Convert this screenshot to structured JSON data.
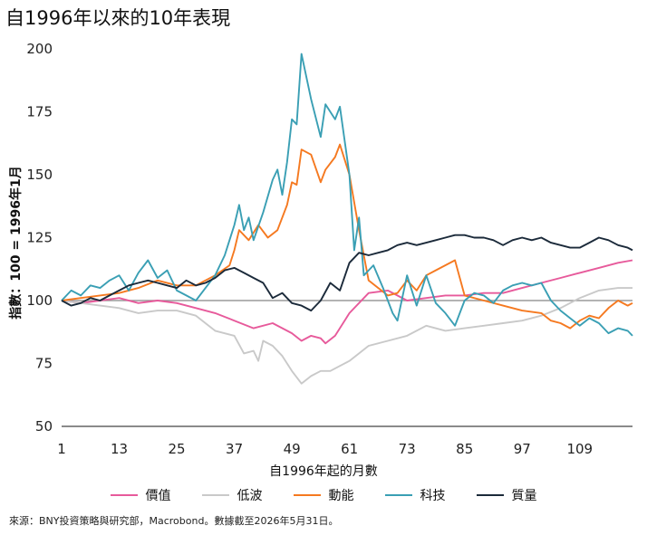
{
  "title": "自1996年以來的10年表現",
  "source": "來源：BNY投資策略與研究部，Macrobond。數據截至2026年5月31日。",
  "chart_data": {
    "type": "line",
    "title": "自1996年以來的10年表現",
    "xlabel": "自1996年起的月數",
    "ylabel": "指數：100 = 1996年1月",
    "xlim": [
      1,
      120
    ],
    "ylim": [
      50,
      200
    ],
    "x_ticks": [
      1,
      13,
      25,
      37,
      49,
      61,
      73,
      85,
      97,
      109
    ],
    "y_ticks": [
      50,
      75,
      100,
      125,
      150,
      175,
      200
    ],
    "grid": false,
    "reference_line": 100,
    "legend_position": "bottom",
    "series": [
      {
        "name": "價值",
        "color": "#e75a9b",
        "points": [
          [
            1,
            100
          ],
          [
            5,
            99
          ],
          [
            9,
            100
          ],
          [
            13,
            101
          ],
          [
            17,
            99
          ],
          [
            21,
            100
          ],
          [
            25,
            99
          ],
          [
            29,
            97
          ],
          [
            33,
            95
          ],
          [
            37,
            92
          ],
          [
            41,
            89
          ],
          [
            45,
            91
          ],
          [
            49,
            87
          ],
          [
            51,
            84
          ],
          [
            53,
            86
          ],
          [
            55,
            85
          ],
          [
            56,
            83
          ],
          [
            58,
            86
          ],
          [
            61,
            95
          ],
          [
            65,
            103
          ],
          [
            69,
            104
          ],
          [
            73,
            100
          ],
          [
            77,
            101
          ],
          [
            81,
            102
          ],
          [
            85,
            102
          ],
          [
            89,
            103
          ],
          [
            93,
            103
          ],
          [
            97,
            105
          ],
          [
            101,
            107
          ],
          [
            105,
            109
          ],
          [
            109,
            111
          ],
          [
            113,
            113
          ],
          [
            117,
            115
          ],
          [
            120,
            116
          ]
        ]
      },
      {
        "name": "低波",
        "color": "#c9c9c9",
        "points": [
          [
            1,
            100
          ],
          [
            5,
            99
          ],
          [
            9,
            98
          ],
          [
            13,
            97
          ],
          [
            17,
            95
          ],
          [
            21,
            96
          ],
          [
            25,
            96
          ],
          [
            29,
            94
          ],
          [
            33,
            88
          ],
          [
            37,
            86
          ],
          [
            39,
            79
          ],
          [
            41,
            80
          ],
          [
            42,
            76
          ],
          [
            43,
            84
          ],
          [
            45,
            82
          ],
          [
            47,
            78
          ],
          [
            49,
            72
          ],
          [
            51,
            67
          ],
          [
            53,
            70
          ],
          [
            55,
            72
          ],
          [
            57,
            72
          ],
          [
            61,
            76
          ],
          [
            65,
            82
          ],
          [
            69,
            84
          ],
          [
            73,
            86
          ],
          [
            77,
            90
          ],
          [
            81,
            88
          ],
          [
            85,
            89
          ],
          [
            89,
            90
          ],
          [
            93,
            91
          ],
          [
            97,
            92
          ],
          [
            101,
            94
          ],
          [
            105,
            97
          ],
          [
            109,
            101
          ],
          [
            113,
            104
          ],
          [
            117,
            105
          ],
          [
            120,
            105
          ]
        ]
      },
      {
        "name": "動能",
        "color": "#f57920",
        "points": [
          [
            1,
            100
          ],
          [
            5,
            101
          ],
          [
            9,
            102
          ],
          [
            13,
            103
          ],
          [
            17,
            105
          ],
          [
            21,
            108
          ],
          [
            25,
            106
          ],
          [
            29,
            106
          ],
          [
            33,
            110
          ],
          [
            36,
            114
          ],
          [
            37,
            120
          ],
          [
            38,
            128
          ],
          [
            40,
            124
          ],
          [
            42,
            130
          ],
          [
            44,
            125
          ],
          [
            46,
            128
          ],
          [
            48,
            138
          ],
          [
            49,
            147
          ],
          [
            50,
            146
          ],
          [
            51,
            160
          ],
          [
            53,
            158
          ],
          [
            55,
            147
          ],
          [
            56,
            152
          ],
          [
            58,
            157
          ],
          [
            59,
            162
          ],
          [
            61,
            150
          ],
          [
            63,
            128
          ],
          [
            64,
            118
          ],
          [
            65,
            108
          ],
          [
            67,
            105
          ],
          [
            69,
            102
          ],
          [
            71,
            103
          ],
          [
            73,
            108
          ],
          [
            75,
            104
          ],
          [
            77,
            110
          ],
          [
            79,
            112
          ],
          [
            83,
            116
          ],
          [
            85,
            102
          ],
          [
            89,
            100
          ],
          [
            93,
            98
          ],
          [
            97,
            96
          ],
          [
            101,
            95
          ],
          [
            103,
            92
          ],
          [
            105,
            91
          ],
          [
            107,
            89
          ],
          [
            109,
            92
          ],
          [
            111,
            94
          ],
          [
            113,
            93
          ],
          [
            115,
            97
          ],
          [
            117,
            100
          ],
          [
            119,
            98
          ],
          [
            120,
            99
          ]
        ]
      },
      {
        "name": "科技",
        "color": "#3a9fb4",
        "points": [
          [
            1,
            100
          ],
          [
            3,
            104
          ],
          [
            5,
            102
          ],
          [
            7,
            106
          ],
          [
            9,
            105
          ],
          [
            11,
            108
          ],
          [
            13,
            110
          ],
          [
            15,
            104
          ],
          [
            17,
            111
          ],
          [
            19,
            116
          ],
          [
            21,
            109
          ],
          [
            23,
            112
          ],
          [
            25,
            104
          ],
          [
            27,
            102
          ],
          [
            29,
            100
          ],
          [
            31,
            105
          ],
          [
            33,
            110
          ],
          [
            35,
            118
          ],
          [
            37,
            130
          ],
          [
            38,
            138
          ],
          [
            39,
            128
          ],
          [
            40,
            133
          ],
          [
            41,
            124
          ],
          [
            43,
            135
          ],
          [
            45,
            148
          ],
          [
            46,
            152
          ],
          [
            47,
            142
          ],
          [
            48,
            155
          ],
          [
            49,
            172
          ],
          [
            50,
            170
          ],
          [
            51,
            198
          ],
          [
            53,
            180
          ],
          [
            55,
            165
          ],
          [
            56,
            178
          ],
          [
            58,
            172
          ],
          [
            59,
            177
          ],
          [
            61,
            150
          ],
          [
            62,
            120
          ],
          [
            63,
            133
          ],
          [
            64,
            110
          ],
          [
            66,
            114
          ],
          [
            68,
            105
          ],
          [
            70,
            95
          ],
          [
            71,
            92
          ],
          [
            73,
            110
          ],
          [
            75,
            98
          ],
          [
            77,
            110
          ],
          [
            79,
            99
          ],
          [
            81,
            95
          ],
          [
            83,
            90
          ],
          [
            85,
            100
          ],
          [
            87,
            103
          ],
          [
            89,
            102
          ],
          [
            91,
            99
          ],
          [
            93,
            104
          ],
          [
            95,
            106
          ],
          [
            97,
            107
          ],
          [
            99,
            106
          ],
          [
            101,
            107
          ],
          [
            103,
            100
          ],
          [
            105,
            96
          ],
          [
            107,
            93
          ],
          [
            109,
            90
          ],
          [
            111,
            93
          ],
          [
            113,
            91
          ],
          [
            115,
            87
          ],
          [
            117,
            89
          ],
          [
            119,
            88
          ],
          [
            120,
            86
          ]
        ]
      },
      {
        "name": "質量",
        "color": "#1b2a3a",
        "points": [
          [
            1,
            100
          ],
          [
            3,
            98
          ],
          [
            5,
            99
          ],
          [
            7,
            101
          ],
          [
            9,
            100
          ],
          [
            11,
            102
          ],
          [
            13,
            104
          ],
          [
            15,
            106
          ],
          [
            17,
            107
          ],
          [
            19,
            108
          ],
          [
            21,
            107
          ],
          [
            23,
            106
          ],
          [
            25,
            105
          ],
          [
            27,
            108
          ],
          [
            29,
            106
          ],
          [
            31,
            107
          ],
          [
            33,
            109
          ],
          [
            35,
            112
          ],
          [
            37,
            113
          ],
          [
            39,
            111
          ],
          [
            41,
            109
          ],
          [
            43,
            107
          ],
          [
            45,
            101
          ],
          [
            47,
            103
          ],
          [
            49,
            99
          ],
          [
            51,
            98
          ],
          [
            53,
            96
          ],
          [
            55,
            100
          ],
          [
            57,
            107
          ],
          [
            59,
            104
          ],
          [
            61,
            115
          ],
          [
            63,
            119
          ],
          [
            65,
            118
          ],
          [
            67,
            119
          ],
          [
            69,
            120
          ],
          [
            71,
            122
          ],
          [
            73,
            123
          ],
          [
            75,
            122
          ],
          [
            77,
            123
          ],
          [
            79,
            124
          ],
          [
            81,
            125
          ],
          [
            83,
            126
          ],
          [
            85,
            126
          ],
          [
            87,
            125
          ],
          [
            89,
            125
          ],
          [
            91,
            124
          ],
          [
            93,
            122
          ],
          [
            95,
            124
          ],
          [
            97,
            125
          ],
          [
            99,
            124
          ],
          [
            101,
            125
          ],
          [
            103,
            123
          ],
          [
            105,
            122
          ],
          [
            107,
            121
          ],
          [
            109,
            121
          ],
          [
            111,
            123
          ],
          [
            113,
            125
          ],
          [
            115,
            124
          ],
          [
            117,
            122
          ],
          [
            119,
            121
          ],
          [
            120,
            120
          ]
        ]
      }
    ]
  }
}
